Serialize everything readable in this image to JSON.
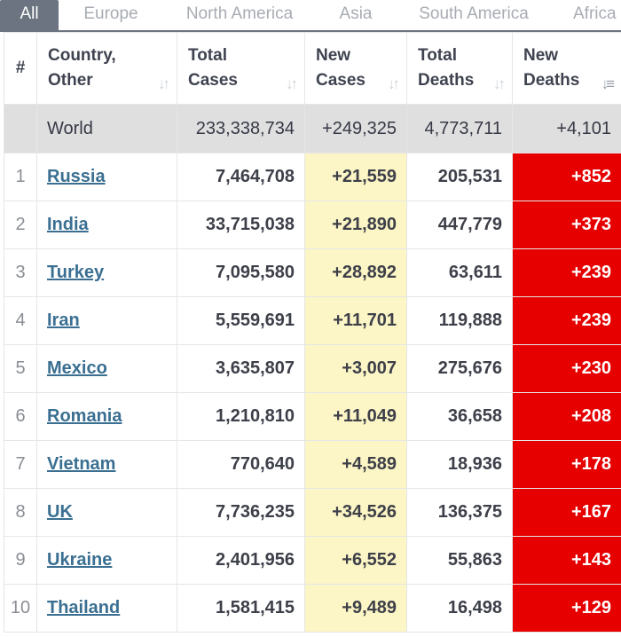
{
  "tabs": [
    "All",
    "Europe",
    "North America",
    "Asia",
    "South America",
    "Africa"
  ],
  "columns": {
    "index": "#",
    "country": [
      "Country,",
      "Other"
    ],
    "total_cases": [
      "Total",
      "Cases"
    ],
    "new_cases": [
      "New",
      "Cases"
    ],
    "total_deaths": [
      "Total",
      "Deaths"
    ],
    "new_deaths": [
      "New",
      "Deaths"
    ]
  },
  "icons": {
    "sort": "sort-icon",
    "sort_active": "sort-desc-icon"
  },
  "colors": {
    "new_cases_bg": "#fcf5c5",
    "new_deaths_bg": "#e60000",
    "link": "#3a6f92",
    "active_tab": "#6b7480"
  },
  "world": {
    "label": "World",
    "total_cases": "233,338,734",
    "new_cases": "+249,325",
    "total_deaths": "4,773,711",
    "new_deaths": "+4,101"
  },
  "rows": [
    {
      "idx": "1",
      "country": "Russia",
      "total_cases": "7,464,708",
      "new_cases": "+21,559",
      "total_deaths": "205,531",
      "new_deaths": "+852"
    },
    {
      "idx": "2",
      "country": "India",
      "total_cases": "33,715,038",
      "new_cases": "+21,890",
      "total_deaths": "447,779",
      "new_deaths": "+373"
    },
    {
      "idx": "3",
      "country": "Turkey",
      "total_cases": "7,095,580",
      "new_cases": "+28,892",
      "total_deaths": "63,611",
      "new_deaths": "+239"
    },
    {
      "idx": "4",
      "country": "Iran",
      "total_cases": "5,559,691",
      "new_cases": "+11,701",
      "total_deaths": "119,888",
      "new_deaths": "+239"
    },
    {
      "idx": "5",
      "country": "Mexico",
      "total_cases": "3,635,807",
      "new_cases": "+3,007",
      "total_deaths": "275,676",
      "new_deaths": "+230"
    },
    {
      "idx": "6",
      "country": "Romania",
      "total_cases": "1,210,810",
      "new_cases": "+11,049",
      "total_deaths": "36,658",
      "new_deaths": "+208"
    },
    {
      "idx": "7",
      "country": "Vietnam",
      "total_cases": "770,640",
      "new_cases": "+4,589",
      "total_deaths": "18,936",
      "new_deaths": "+178"
    },
    {
      "idx": "8",
      "country": "UK",
      "total_cases": "7,736,235",
      "new_cases": "+34,526",
      "total_deaths": "136,375",
      "new_deaths": "+167"
    },
    {
      "idx": "9",
      "country": "Ukraine",
      "total_cases": "2,401,956",
      "new_cases": "+6,552",
      "total_deaths": "55,863",
      "new_deaths": "+143"
    },
    {
      "idx": "10",
      "country": "Thailand",
      "total_cases": "1,581,415",
      "new_cases": "+9,489",
      "total_deaths": "16,498",
      "new_deaths": "+129"
    }
  ]
}
